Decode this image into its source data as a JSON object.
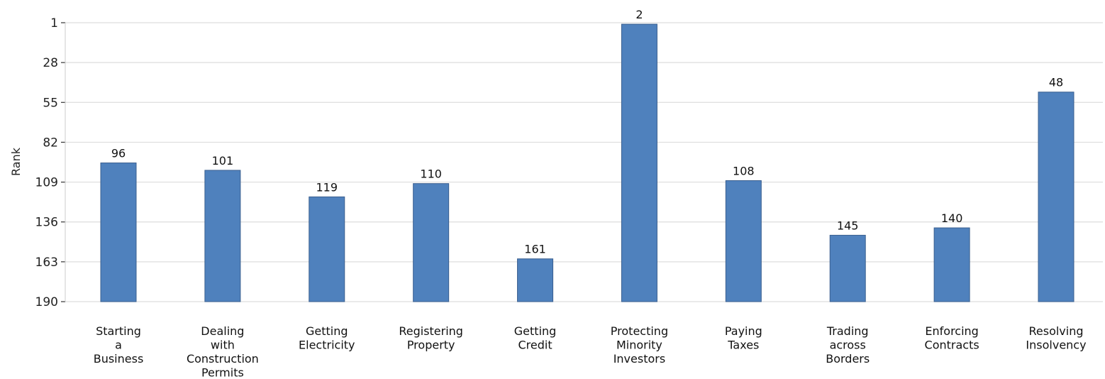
{
  "chart_data": {
    "type": "bar",
    "title": "",
    "xlabel": "",
    "ylabel": "Rank",
    "y_inverted": true,
    "ylim": [
      1,
      190
    ],
    "yticks": [
      1,
      28,
      55,
      82,
      109,
      136,
      163,
      190
    ],
    "grid": true,
    "legend": "none",
    "bar_color": "#4f81bd",
    "bar_edge_color": "#3a5f8f",
    "categories": [
      [
        "Starting",
        "a",
        "Business"
      ],
      [
        "Dealing",
        "with",
        "Construction",
        "Permits"
      ],
      [
        "Getting",
        "Electricity"
      ],
      [
        "Registering",
        "Property"
      ],
      [
        "Getting",
        "Credit"
      ],
      [
        "Protecting",
        "Minority",
        "Investors"
      ],
      [
        "Paying",
        "Taxes"
      ],
      [
        "Trading",
        "across",
        "Borders"
      ],
      [
        "Enforcing",
        "Contracts"
      ],
      [
        "Resolving",
        "Insolvency"
      ]
    ],
    "values": [
      96,
      101,
      119,
      110,
      161,
      2,
      108,
      145,
      140,
      48
    ]
  }
}
